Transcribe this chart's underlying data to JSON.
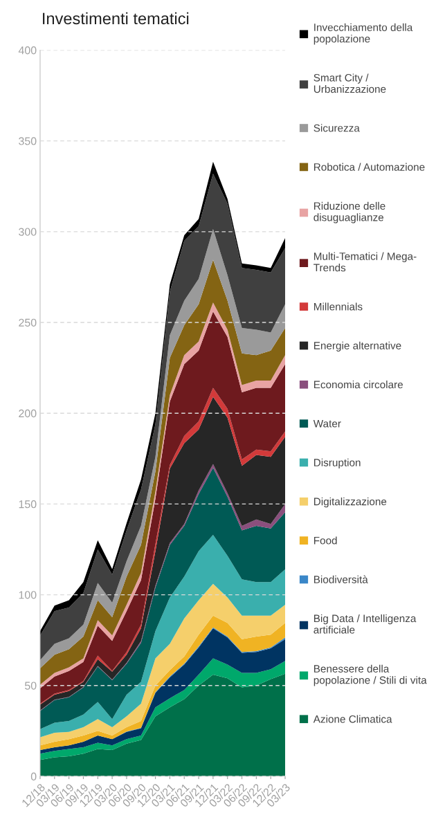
{
  "chart_data": {
    "type": "area",
    "title": "Investimenti tematici",
    "stacked": true,
    "categories": [
      "12/18",
      "03/19",
      "06/19",
      "09/19",
      "12/19",
      "03/20",
      "06/20",
      "09/20",
      "12/20",
      "03/21",
      "06/21",
      "09/21",
      "12/21",
      "03/22",
      "06/22",
      "09/22",
      "12/22",
      "03/23"
    ],
    "ylim": [
      0,
      400
    ],
    "yticks": [
      0,
      50,
      100,
      150,
      200,
      250,
      300,
      350,
      400
    ],
    "grid": "y",
    "legend": "right",
    "series": [
      {
        "name": "Azione Climatica",
        "color": "#00704a",
        "values": [
          9,
          10.5,
          11,
          12.5,
          15,
          14.5,
          18,
          20,
          33,
          38,
          42.5,
          50,
          56,
          54,
          49,
          50,
          53.5,
          56.5
        ]
      },
      {
        "name": "Benessere della\npopolazione / Stili di vita",
        "color": "#00a86b",
        "values": [
          3.5,
          3.5,
          4,
          3.5,
          3.5,
          2.5,
          2.5,
          2.5,
          5,
          5,
          5,
          6,
          9,
          7.5,
          8,
          7,
          5.5,
          7
        ]
      },
      {
        "name": "Big Data / Intelligenza\nartificiale",
        "color": "#003462",
        "values": [
          2,
          2,
          2,
          3,
          4,
          3.5,
          4,
          4,
          8,
          11.5,
          14,
          15,
          16.5,
          15,
          11,
          11.5,
          11.5,
          12
        ]
      },
      {
        "name": "Biodiversità",
        "color": "#3a87c8",
        "values": [
          0,
          0,
          0,
          0,
          0,
          0,
          0.2,
          0.2,
          0.3,
          0.5,
          0.5,
          0.5,
          0.5,
          0.5,
          0.5,
          0.5,
          0.5,
          1
        ]
      },
      {
        "name": "Food",
        "color": "#f0b323",
        "values": [
          2.5,
          3,
          3.5,
          3.5,
          2.5,
          2,
          2.3,
          3.8,
          3.7,
          3.5,
          4,
          6.5,
          6.5,
          7.5,
          7,
          8,
          7,
          8
        ]
      },
      {
        "name": "Digitalizzazione",
        "color": "#f5cf6b",
        "values": [
          4.5,
          5,
          4,
          4.5,
          6.5,
          4.5,
          6,
          9.5,
          15,
          14.5,
          21,
          19,
          17.5,
          14,
          13,
          11.5,
          10.5,
          10
        ]
      },
      {
        "name": "Disruption",
        "color": "#3aafad",
        "values": [
          4.5,
          5.5,
          6,
          7,
          9.5,
          4.5,
          12,
          12,
          15,
          25.5,
          23,
          27,
          27,
          23,
          20,
          18.5,
          18.5,
          19.5
        ]
      },
      {
        "name": "Water",
        "color": "#005a55",
        "values": [
          10,
          12.5,
          13,
          15,
          19.5,
          21.5,
          17,
          21.5,
          24,
          29,
          28,
          31.5,
          37,
          32.5,
          27,
          31,
          29.5,
          31.5
        ]
      },
      {
        "name": "Economia circolare",
        "color": "#8a4f7d",
        "values": [
          0.3,
          0.2,
          0.2,
          0.2,
          0.3,
          0.2,
          0.5,
          1,
          1,
          1,
          1,
          2,
          2,
          2,
          2.5,
          3.5,
          2.5,
          4.5
        ]
      },
      {
        "name": "Energie alternative",
        "color": "#262626",
        "values": [
          3.2,
          2.8,
          3.3,
          2.8,
          3.7,
          4.4,
          4.5,
          7,
          19,
          41,
          44.5,
          33.5,
          37,
          41.5,
          33,
          35.5,
          37,
          37
        ]
      },
      {
        "name": "Millennials",
        "color": "#d33a3a",
        "values": [
          0.5,
          0.5,
          0.5,
          0.5,
          2,
          0.5,
          1.5,
          2,
          4,
          2,
          4,
          4.5,
          5,
          5,
          3.5,
          3,
          3,
          3
        ]
      },
      {
        "name": "Multi-Tematici / Mega-\nTrends",
        "color": "#6e1a1e",
        "values": [
          8.5,
          9.5,
          10.5,
          10.5,
          16.5,
          16.5,
          22.5,
          24.5,
          25,
          35,
          39.5,
          39,
          42,
          39.5,
          37,
          34,
          35,
          37
        ]
      },
      {
        "name": "Riduzione delle\ndisuguaglianze",
        "color": "#e8a3a3",
        "values": [
          2,
          2,
          2,
          2,
          3,
          3,
          3.5,
          4,
          4,
          3.5,
          5,
          5,
          5,
          4,
          4,
          4,
          4,
          5
        ]
      },
      {
        "name": "Robotica / Automazione",
        "color": "#846413",
        "values": [
          9,
          10,
          10,
          12,
          11,
          10,
          15.5,
          15.5,
          11,
          20.5,
          16.5,
          20.5,
          23.5,
          16,
          17.5,
          14,
          16.5,
          15
        ]
      },
      {
        "name": "Sicurezza",
        "color": "#9a9a9a",
        "values": [
          4.5,
          6,
          6,
          6.5,
          9.5,
          8,
          8.5,
          10.5,
          8,
          12.5,
          13.5,
          14,
          17,
          14,
          14,
          14,
          10,
          13
        ]
      },
      {
        "name": "Smart City /\nUrbanizzazione",
        "color": "#404040",
        "values": [
          13.5,
          18,
          17,
          17.5,
          18.5,
          15.5,
          17,
          20,
          18,
          24,
          33,
          29,
          30.5,
          39.5,
          33,
          33,
          33,
          31
        ]
      },
      {
        "name": "Invecchiamento della\npopolazione",
        "color": "#000000",
        "values": [
          2.5,
          3,
          4,
          6,
          5,
          3,
          4,
          5.5,
          6,
          4,
          3,
          4,
          6.5,
          2.5,
          2.5,
          2.5,
          2.5,
          5.5
        ]
      }
    ]
  }
}
